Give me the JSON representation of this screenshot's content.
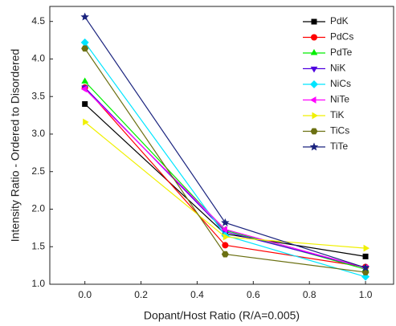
{
  "chart_data": {
    "type": "line",
    "x_label": "Dopant/Host Ratio (R/A=0.005)",
    "y_label": "Intensity Ratio - Ordered to Disordered",
    "x": [
      0.0,
      0.5,
      1.0
    ],
    "series": [
      {
        "name": "PdK",
        "color": "#000000",
        "marker": "square",
        "values": [
          3.4,
          1.67,
          1.37
        ]
      },
      {
        "name": "PdCs",
        "color": "#ff0000",
        "marker": "circle",
        "values": [
          3.62,
          1.52,
          1.23
        ]
      },
      {
        "name": "PdTe",
        "color": "#00ee00",
        "marker": "triangle-up",
        "values": [
          3.7,
          1.72,
          1.2
        ]
      },
      {
        "name": "NiK",
        "color": "#5000e0",
        "marker": "triangle-down",
        "values": [
          3.62,
          1.7,
          1.22
        ]
      },
      {
        "name": "NiCs",
        "color": "#00e5ff",
        "marker": "diamond",
        "values": [
          4.22,
          1.65,
          1.1
        ]
      },
      {
        "name": "NiTe",
        "color": "#ff00ff",
        "marker": "triangle-left",
        "values": [
          3.6,
          1.73,
          1.22
        ]
      },
      {
        "name": "TiK",
        "color": "#f0f000",
        "marker": "triangle-right",
        "values": [
          3.16,
          1.63,
          1.48
        ]
      },
      {
        "name": "TiCs",
        "color": "#6b7012",
        "marker": "hexagon",
        "values": [
          4.14,
          1.4,
          1.16
        ]
      },
      {
        "name": "TiTe",
        "color": "#1a237e",
        "marker": "star",
        "values": [
          4.56,
          1.82,
          1.22
        ]
      }
    ],
    "xlim": [
      -0.125,
      1.1
    ],
    "ylim": [
      1.0,
      4.7
    ],
    "xticks": [
      {
        "value": 0,
        "label": "0.0"
      },
      0.2,
      0.4,
      0.6,
      0.8,
      {
        "value": 1,
        "label": "1.0"
      }
    ],
    "yticks": [
      {
        "value": 1,
        "label": "1.0"
      },
      1.5,
      {
        "value": 2,
        "label": "2.0"
      },
      2.5,
      {
        "value": 3,
        "label": "3.0"
      },
      3.5,
      {
        "value": 4,
        "label": "4.0"
      },
      4.5
    ],
    "grid": false,
    "legend": "upper-right"
  }
}
